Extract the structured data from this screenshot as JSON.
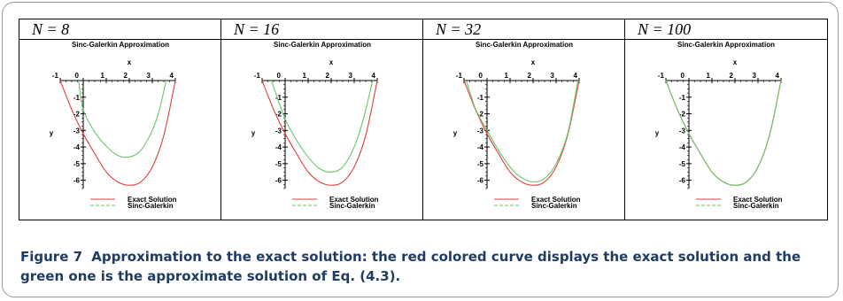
{
  "figure": {
    "label": "Figure 7",
    "caption": "Approximation to the exact solution: the red colored curve displays the exact solution and the green one is the approximate solution of Eq. (4.3)."
  },
  "colors": {
    "exact": "#d9433f",
    "approx": "#6ac86a"
  },
  "chart_data": [
    {
      "type": "line",
      "panel_label": "N = 8",
      "title": "Sinc-Galerkin Approximation",
      "xlabel": "x",
      "ylabel": "y",
      "xlim": [
        -1,
        4
      ],
      "ylim": [
        -6.5,
        0
      ],
      "xticks": [
        "-1",
        "0",
        "1",
        "2",
        "3",
        "4"
      ],
      "yticks": [
        "0",
        "-1",
        "-2",
        "-3",
        "-4",
        "-5",
        "-6"
      ],
      "legend": [
        "Exact Solution",
        "Sinc-Galerkin"
      ],
      "legend_position": "bottom",
      "series": [
        {
          "name": "Exact Solution",
          "x": [
            -1,
            -0.5,
            0,
            0.5,
            1,
            1.5,
            2,
            2.5,
            3,
            3.5,
            4
          ],
          "y": [
            0,
            -1.75,
            -3.2,
            -4.4,
            -5.5,
            -6.1,
            -6.3,
            -6.1,
            -5.2,
            -3.3,
            0
          ]
        },
        {
          "name": "Sinc-Galerkin",
          "x": [
            -0.2,
            0,
            0.5,
            1,
            1.5,
            2,
            2.5,
            3,
            3.3,
            3.6
          ],
          "y": [
            0,
            -1.75,
            -3.1,
            -3.95,
            -4.5,
            -4.6,
            -4.2,
            -3.0,
            -1.8,
            0
          ]
        }
      ]
    },
    {
      "type": "line",
      "panel_label": "N = 16",
      "title": "Sinc-Galerkin Approximation",
      "xlabel": "x",
      "ylabel": "y",
      "xlim": [
        -1,
        4
      ],
      "ylim": [
        -6.5,
        0
      ],
      "xticks": [
        "-1",
        "0",
        "1",
        "2",
        "3",
        "4"
      ],
      "yticks": [
        "0",
        "-1",
        "-2",
        "-3",
        "-4",
        "-5",
        "-6"
      ],
      "legend": [
        "Exact Solution",
        "Sinc-Galerkin"
      ],
      "legend_position": "bottom",
      "series": [
        {
          "name": "Exact Solution",
          "x": [
            -1,
            -0.5,
            0,
            0.5,
            1,
            1.5,
            2,
            2.5,
            3,
            3.5,
            4
          ],
          "y": [
            0,
            -1.75,
            -3.2,
            -4.4,
            -5.5,
            -6.1,
            -6.3,
            -6.1,
            -5.2,
            -3.3,
            0
          ]
        },
        {
          "name": "Sinc-Galerkin",
          "x": [
            -0.6,
            0,
            0.5,
            1,
            1.5,
            2,
            2.5,
            3,
            3.4,
            3.8
          ],
          "y": [
            0,
            -2.3,
            -3.6,
            -4.6,
            -5.3,
            -5.5,
            -5.2,
            -4.0,
            -2.3,
            0
          ]
        }
      ]
    },
    {
      "type": "line",
      "panel_label": "N = 32",
      "title": "Sinc-Galerkin Approximation",
      "xlabel": "x",
      "ylabel": "y",
      "xlim": [
        -1,
        4
      ],
      "ylim": [
        -6.5,
        0
      ],
      "xticks": [
        "-1",
        "0",
        "1",
        "2",
        "3",
        "4"
      ],
      "yticks": [
        "0",
        "-1",
        "-2",
        "-3",
        "-4",
        "-5",
        "-6"
      ],
      "legend": [
        "Exact Solution",
        "Sinc-Galerkin"
      ],
      "legend_position": "bottom",
      "series": [
        {
          "name": "Exact Solution",
          "x": [
            -1,
            -0.5,
            0,
            0.5,
            1,
            1.5,
            2,
            2.5,
            3,
            3.5,
            4
          ],
          "y": [
            0,
            -1.75,
            -3.2,
            -4.4,
            -5.5,
            -6.1,
            -6.3,
            -6.1,
            -5.2,
            -3.3,
            0
          ]
        },
        {
          "name": "Sinc-Galerkin",
          "x": [
            -0.9,
            -0.5,
            0,
            0.5,
            1,
            1.5,
            2,
            2.5,
            3,
            3.5,
            3.95
          ],
          "y": [
            0,
            -1.7,
            -3.0,
            -4.2,
            -5.2,
            -5.85,
            -6.1,
            -5.9,
            -5.0,
            -3.2,
            0
          ]
        }
      ]
    },
    {
      "type": "line",
      "panel_label": "N = 100",
      "title": "Sinc-Galerkin Approximation",
      "xlabel": "x",
      "ylabel": "y",
      "xlim": [
        -1,
        4
      ],
      "ylim": [
        -6.5,
        0
      ],
      "xticks": [
        "-1",
        "0",
        "1",
        "2",
        "3",
        "4"
      ],
      "yticks": [
        "0",
        "-1",
        "-2",
        "-3",
        "-4",
        "-5",
        "-6"
      ],
      "legend": [
        "Exact Solution",
        "Sinc-Galerkin"
      ],
      "legend_position": "bottom",
      "series": [
        {
          "name": "Exact Solution",
          "x": [
            -1,
            -0.5,
            0,
            0.5,
            1,
            1.5,
            2,
            2.5,
            3,
            3.5,
            4
          ],
          "y": [
            0,
            -1.75,
            -3.2,
            -4.4,
            -5.5,
            -6.1,
            -6.3,
            -6.1,
            -5.2,
            -3.3,
            0
          ]
        },
        {
          "name": "Sinc-Galerkin",
          "x": [
            -1,
            -0.5,
            0,
            0.5,
            1,
            1.5,
            2,
            2.5,
            3,
            3.5,
            4
          ],
          "y": [
            0,
            -1.75,
            -3.2,
            -4.4,
            -5.5,
            -6.1,
            -6.3,
            -6.1,
            -5.2,
            -3.3,
            0
          ]
        }
      ]
    }
  ]
}
